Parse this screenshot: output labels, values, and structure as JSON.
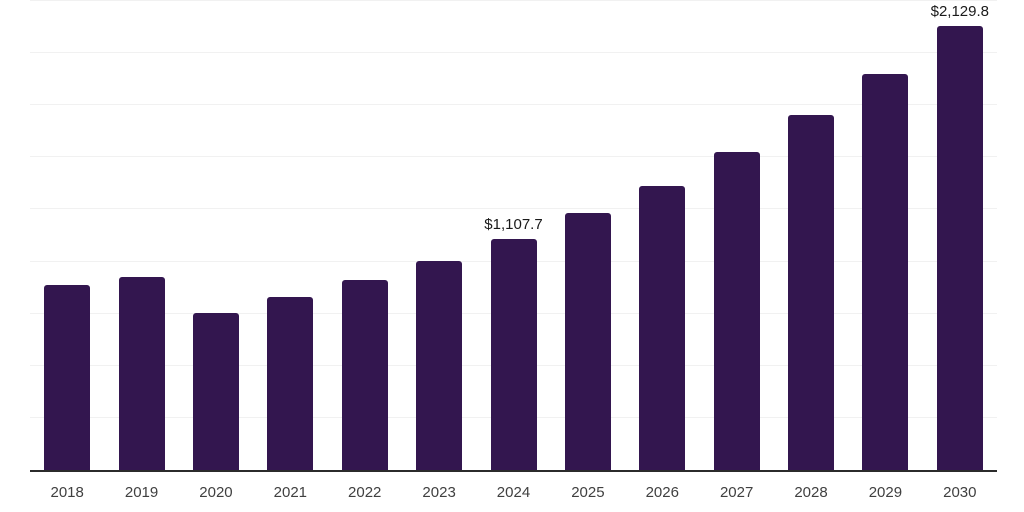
{
  "chart": {
    "background_color": "#ffffff",
    "bar_color": "#33164f",
    "grid_color": "#f1f1f1",
    "axis_color": "#2b2b2b",
    "tick_label_color": "#404040",
    "data_label_color": "#1a1a1a"
  },
  "chart_data": {
    "type": "bar",
    "categories": [
      "2018",
      "2019",
      "2020",
      "2021",
      "2022",
      "2023",
      "2024",
      "2025",
      "2026",
      "2027",
      "2028",
      "2029",
      "2030"
    ],
    "values": [
      888,
      928,
      753,
      828,
      913,
      1004,
      1107.7,
      1233,
      1364,
      1526,
      1704,
      1902,
      2129.8
    ],
    "data_labels": [
      {
        "category": "2024",
        "index": 6,
        "text": "$1,107.7"
      },
      {
        "category": "2030",
        "index": 12,
        "text": "$2,129.8"
      }
    ],
    "ylim": [
      0,
      2250
    ],
    "grid_step": 250,
    "grid": true,
    "legend": false,
    "y_axis_tick_labels_visible": false,
    "x_tick_labels": [
      "2018",
      "2019",
      "2020",
      "2021",
      "2022",
      "2023",
      "2024",
      "2025",
      "2026",
      "2027",
      "2028",
      "2029",
      "2030"
    ]
  }
}
